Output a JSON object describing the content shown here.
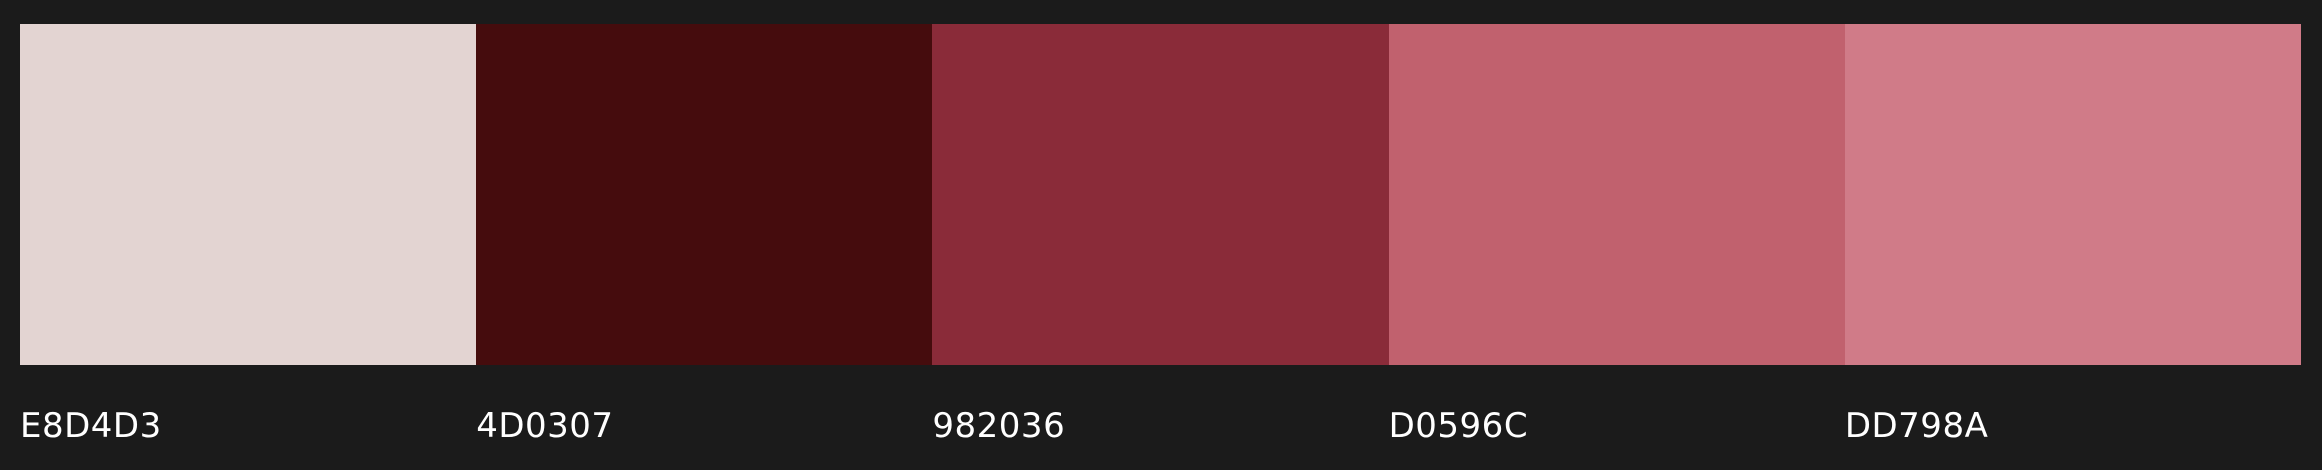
{
  "swatches": [
    {
      "hex": "E8D4D3",
      "color": "#E3D4D2"
    },
    {
      "hex": "4D0307",
      "color": "#450C0D"
    },
    {
      "hex": "982036",
      "color": "#8A2B39"
    },
    {
      "hex": "D0596C",
      "color": "#C1616E"
    },
    {
      "hex": "DD798A",
      "color": "#D07B88"
    }
  ]
}
